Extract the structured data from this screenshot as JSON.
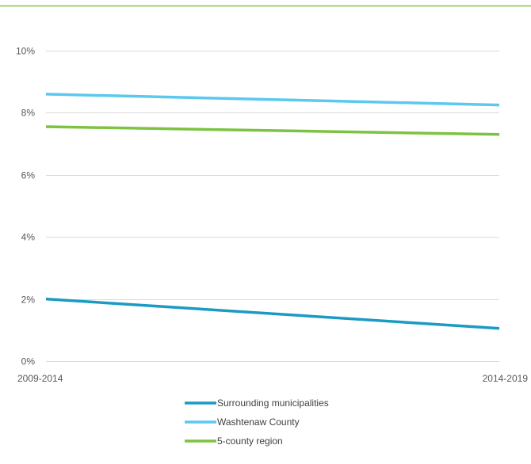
{
  "colors": {
    "top_rule": "#7dc242",
    "gridline": "#d9d9d9",
    "axis": "#d9d9d9",
    "tick_text": "#595959",
    "legend_text": "#404040"
  },
  "chart_data": {
    "type": "line",
    "title": "",
    "xlabel": "",
    "ylabel": "",
    "categories": [
      "2009-2014",
      "2014-2019"
    ],
    "ylim": [
      0,
      10
    ],
    "ytick_labels": [
      "0%",
      "2%",
      "4%",
      "6%",
      "8%",
      "10%"
    ],
    "ytick_values": [
      0,
      2,
      4,
      6,
      8,
      10
    ],
    "grid": true,
    "legend_position": "bottom",
    "series": [
      {
        "name": "Surrounding municipalities",
        "values": [
          2.0,
          1.05
        ],
        "color": "#1b9ac4"
      },
      {
        "name": "Washtenaw County",
        "values": [
          8.6,
          8.25
        ],
        "color": "#5bc8ee"
      },
      {
        "name": "5-county region",
        "values": [
          7.55,
          7.3
        ],
        "color": "#7dc242"
      }
    ]
  }
}
